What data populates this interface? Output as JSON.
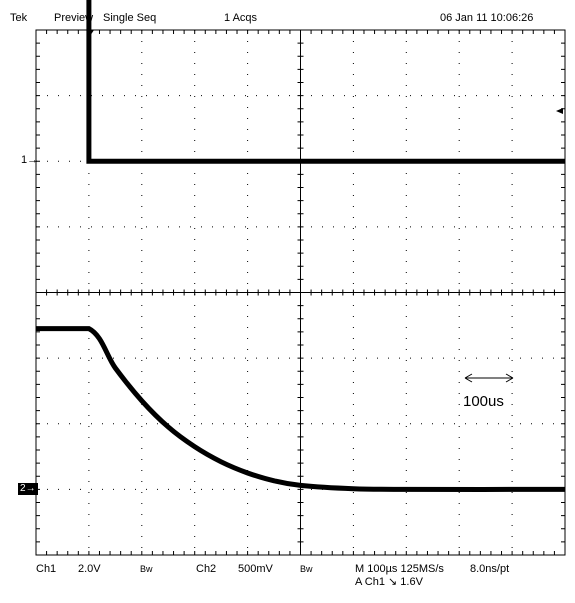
{
  "status_bar": {
    "brand": "Tek",
    "mode": "Preview",
    "acq_mode": "Single Seq",
    "acq_count": "1 Acqs",
    "datetime": "06 Jan 11 10:06:26"
  },
  "channel_markers": {
    "ch1": "1",
    "ch2": "2"
  },
  "settings": {
    "ch1_label": "Ch1",
    "ch1_scale": "2.0V",
    "ch1_bw": "Bw",
    "ch2_label": "Ch2",
    "ch2_scale": "500mV",
    "ch2_bw": "Bw",
    "timebase": "M 100µs 125MS/s",
    "sample_interval": "8.0ns/pt",
    "trigger": "A  Ch1  ↘  1.6V"
  },
  "annotation": {
    "time_scale_label": "100us"
  },
  "chart_data": {
    "type": "line",
    "x_unit": "µs",
    "x_range_us": [
      0,
      1000
    ],
    "time_per_div_us": 100,
    "grid": true,
    "series": [
      {
        "name": "Ch1",
        "volts_per_div": 2.0,
        "points_us_div": [
          [
            0,
            3.0
          ],
          [
            100,
            3.0
          ],
          [
            100,
            0.0
          ],
          [
            1000,
            0.0
          ]
        ]
      },
      {
        "name": "Ch2",
        "volts_per_div": 0.5,
        "points_us_div": [
          [
            0,
            2.45
          ],
          [
            100,
            2.45
          ],
          [
            150,
            1.85
          ],
          [
            200,
            1.35
          ],
          [
            250,
            0.95
          ],
          [
            300,
            0.65
          ],
          [
            350,
            0.42
          ],
          [
            400,
            0.25
          ],
          [
            450,
            0.13
          ],
          [
            500,
            0.06
          ],
          [
            600,
            0.01
          ],
          [
            700,
            0.0
          ],
          [
            1000,
            0.0
          ]
        ]
      }
    ]
  }
}
